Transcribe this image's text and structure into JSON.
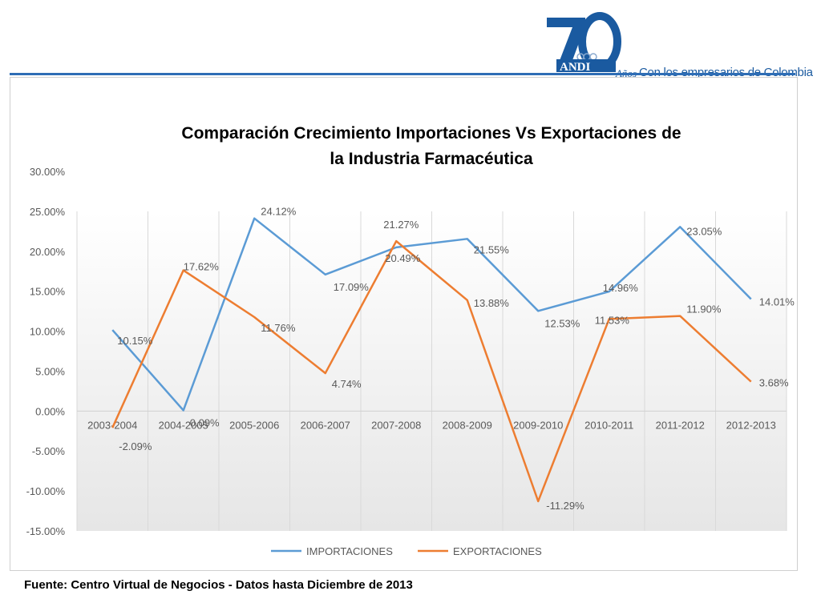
{
  "header": {
    "logo_number": "70",
    "logo_brand": "ANDI",
    "logo_anos": "Años",
    "logo_tagline": "Con los empresarios de Colombia",
    "colors": {
      "brand_blue": "#1a5aa0",
      "rule_blue": "#2e6db5"
    }
  },
  "chart_data": {
    "type": "line",
    "title_line1": "Comparación  Crecimiento  Importaciones  Vs  Exportaciones  de",
    "title_line2": "la Industria  Farmacéutica",
    "categories": [
      "2003-2004",
      "2004-2005",
      "2005-2006",
      "2006-2007",
      "2007-2008",
      "2008-2009",
      "2009-2010",
      "2010-2011",
      "2011-2012",
      "2012-2013"
    ],
    "y_ticks": [
      "30.00%",
      "25.00%",
      "20.00%",
      "15.00%",
      "10.00%",
      "5.00%",
      "0.00%",
      "-5.00%",
      "-10.00%",
      "-15.00%"
    ],
    "ylim": [
      -15,
      30
    ],
    "grid": "vertical",
    "legend_position": "bottom",
    "series": [
      {
        "name": "IMPORTACIONES",
        "color": "#5b9bd5",
        "values": [
          10.15,
          0.09,
          24.12,
          17.09,
          20.49,
          21.55,
          12.53,
          14.96,
          23.05,
          14.01
        ],
        "labels": [
          "10.15%",
          "0.09%",
          "24.12%",
          "17.09%",
          "20.49%",
          "21.55%",
          "12.53%",
          "14.96%",
          "23.05%",
          "14.01%"
        ]
      },
      {
        "name": "EXPORTACIONES",
        "color": "#ed7d31",
        "values": [
          -2.09,
          17.62,
          11.76,
          4.74,
          21.27,
          13.88,
          -11.29,
          11.53,
          11.9,
          3.68
        ],
        "labels": [
          "-2.09%",
          "17.62%",
          "11.76%",
          "4.74%",
          "21.27%",
          "13.88%",
          "-11.29%",
          "11.53%",
          "11.90%",
          "3.68%"
        ]
      }
    ]
  },
  "footer": {
    "source": "Fuente:  Centro Virtual de Negocios  - Datos hasta  Diciembre  de 2013"
  }
}
